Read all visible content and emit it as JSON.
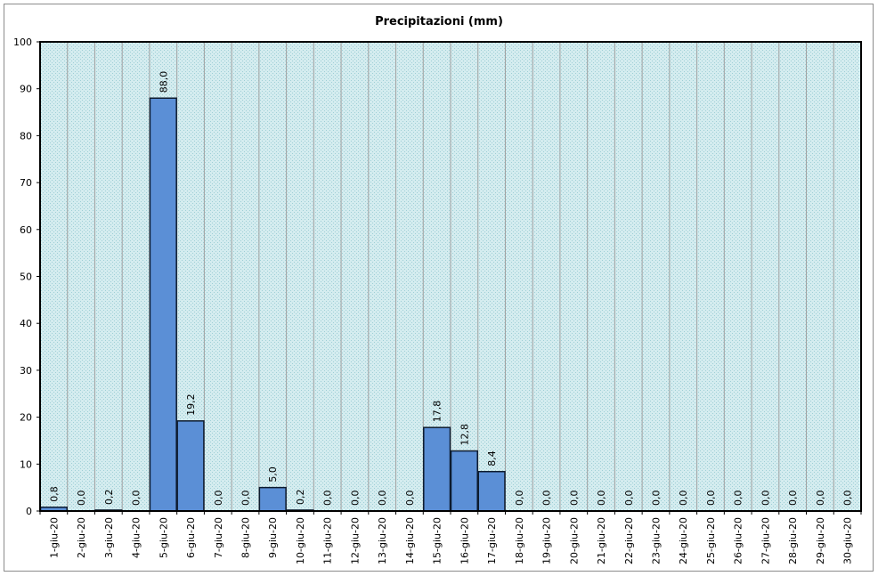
{
  "chart_data": {
    "type": "bar",
    "title": "Precipitazioni (mm)",
    "xlabel": "",
    "ylabel": "",
    "ylim": [
      0,
      100
    ],
    "yticks": [
      0,
      10,
      20,
      30,
      40,
      50,
      60,
      70,
      80,
      90,
      100
    ],
    "grid": "vertical category separators",
    "legend": "none",
    "categories": [
      "1-giu-20",
      "2-giu-20",
      "3-giu-20",
      "4-giu-20",
      "5-giu-20",
      "6-giu-20",
      "7-giu-20",
      "8-giu-20",
      "9-giu-20",
      "10-giu-20",
      "11-giu-20",
      "12-giu-20",
      "13-giu-20",
      "14-giu-20",
      "15-giu-20",
      "16-giu-20",
      "17-giu-20",
      "18-giu-20",
      "19-giu-20",
      "20-giu-20",
      "21-giu-20",
      "22-giu-20",
      "23-giu-20",
      "24-giu-20",
      "25-giu-20",
      "26-giu-20",
      "27-giu-20",
      "28-giu-20",
      "29-giu-20",
      "30-giu-20"
    ],
    "values": [
      0.8,
      0.0,
      0.2,
      0.0,
      88.0,
      19.2,
      0.0,
      0.0,
      5.0,
      0.2,
      0.0,
      0.0,
      0.0,
      0.0,
      17.8,
      12.8,
      8.4,
      0.0,
      0.0,
      0.0,
      0.0,
      0.0,
      0.0,
      0.0,
      0.0,
      0.0,
      0.0,
      0.0,
      0.0,
      0.0
    ],
    "data_labels": [
      "0,8",
      "0,0",
      "0,2",
      "0,0",
      "88,0",
      "19,2",
      "0,0",
      "0,0",
      "5,0",
      "0,2",
      "0,0",
      "0,0",
      "0,0",
      "0,0",
      "17,8",
      "12,8",
      "8,4",
      "0,0",
      "0,0",
      "0,0",
      "0,0",
      "0,0",
      "0,0",
      "0,0",
      "0,0",
      "0,0",
      "0,0",
      "0,0",
      "0,0",
      "0,0"
    ],
    "colors": {
      "bar_fill": "#5b8fd6",
      "bar_stroke": "#0d1b2e",
      "plot_bg": "#d4ecef",
      "plot_dots": "#9fcfd6",
      "separator": "#a0a0a0"
    }
  }
}
